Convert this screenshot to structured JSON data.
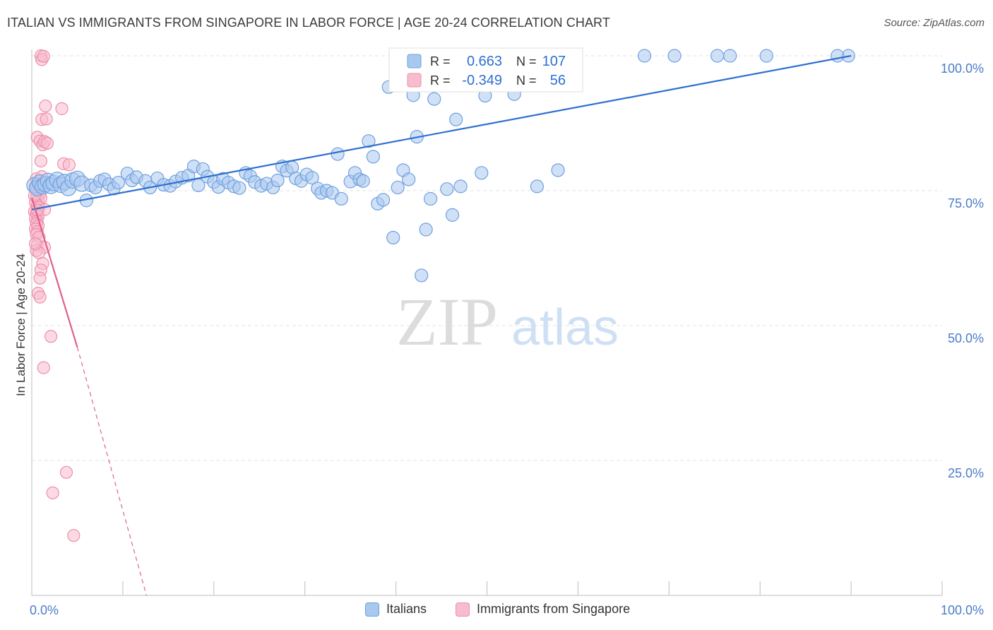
{
  "header": {
    "title": "ITALIAN VS IMMIGRANTS FROM SINGAPORE IN LABOR FORCE | AGE 20-24 CORRELATION CHART",
    "source": "Source: ZipAtlas.com"
  },
  "watermark": {
    "zip": "ZIP",
    "atlas": "atlas"
  },
  "legend_top": {
    "rows": [
      {
        "r_label": "R =",
        "r_value": "0.663",
        "n_label": "N =",
        "n_value": "107"
      },
      {
        "r_label": "R =",
        "r_value": "-0.349",
        "n_label": "N =",
        "n_value": "56"
      }
    ]
  },
  "legend_bottom": {
    "italians": "Italians",
    "singapore": "Immigrants from Singapore"
  },
  "chart_data": {
    "type": "scatter",
    "title": "ITALIAN VS IMMIGRANTS FROM SINGAPORE IN LABOR FORCE | AGE 20-24 CORRELATION CHART",
    "ylabel": "In Labor Force | Age 20-24",
    "xlim": [
      0,
      100
    ],
    "ylim": [
      0,
      100
    ],
    "x_tick_labels": [
      "0.0%",
      "100.0%"
    ],
    "y_tick_labels": [
      {
        "value": 100,
        "label": "100.0%"
      },
      {
        "value": 75,
        "label": "75.0%"
      },
      {
        "value": 50,
        "label": "50.0%"
      },
      {
        "value": 25,
        "label": "25.0%"
      }
    ],
    "grid": true,
    "legend_position": "top-center",
    "colors": {
      "italians_fill": "#a9c8f0",
      "italians_stroke": "#6fa0dd",
      "italians_line": "#2f6fd0",
      "singapore_fill": "#f7bccd",
      "singapore_stroke": "#ee8eac",
      "singapore_line": "#e0608a",
      "tick_label": "#4a7cc9"
    },
    "series": [
      {
        "name": "Italians",
        "R": 0.663,
        "N": 107,
        "trend": {
          "x0": 0,
          "y0": 71.5,
          "x1": 90,
          "y1": 100
        },
        "points": [
          [
            0.3,
            76
          ],
          [
            0.6,
            75.5
          ],
          [
            0.9,
            76.5
          ],
          [
            1.2,
            75.8
          ],
          [
            1.5,
            76.2
          ],
          [
            1.8,
            76.8
          ],
          [
            2.1,
            75.9
          ],
          [
            2.4,
            76.4
          ],
          [
            2.8,
            77
          ],
          [
            3.2,
            76.1
          ],
          [
            3.6,
            76.6
          ],
          [
            4.0,
            75.5
          ],
          [
            4.5,
            76.9
          ],
          [
            5.0,
            77.2
          ],
          [
            5.5,
            76.3
          ],
          [
            6.0,
            73.2
          ],
          [
            6.5,
            76
          ],
          [
            7.0,
            75.6
          ],
          [
            7.5,
            76.8
          ],
          [
            8.0,
            77.1
          ],
          [
            8.5,
            76.2
          ],
          [
            9.0,
            75.4
          ],
          [
            9.5,
            76.5
          ],
          [
            10.5,
            78.2
          ],
          [
            11.0,
            76.9
          ],
          [
            11.5,
            77.5
          ],
          [
            12.5,
            76.8
          ],
          [
            13.0,
            75.6
          ],
          [
            13.8,
            77.3
          ],
          [
            14.5,
            76.1
          ],
          [
            15.2,
            75.9
          ],
          [
            15.8,
            76.7
          ],
          [
            16.5,
            77.4
          ],
          [
            17.2,
            77.8
          ],
          [
            17.8,
            79.5
          ],
          [
            18.3,
            76
          ],
          [
            18.8,
            79
          ],
          [
            19.3,
            77.6
          ],
          [
            20.0,
            76.6
          ],
          [
            20.5,
            75.7
          ],
          [
            21.0,
            77.2
          ],
          [
            21.6,
            76.5
          ],
          [
            22.2,
            75.8
          ],
          [
            22.8,
            75.5
          ],
          [
            23.5,
            78.3
          ],
          [
            24.0,
            77.7
          ],
          [
            24.5,
            76.6
          ],
          [
            25.2,
            75.9
          ],
          [
            25.8,
            76.3
          ],
          [
            26.5,
            75.6
          ],
          [
            27.0,
            76.9
          ],
          [
            27.5,
            79.5
          ],
          [
            28.0,
            78.7
          ],
          [
            28.6,
            79.3
          ],
          [
            29.0,
            77.3
          ],
          [
            29.6,
            76.8
          ],
          [
            30.2,
            78
          ],
          [
            30.8,
            77.4
          ],
          [
            31.4,
            75.4
          ],
          [
            31.8,
            74.6
          ],
          [
            32.4,
            75
          ],
          [
            33.0,
            74.6
          ],
          [
            33.6,
            81.8
          ],
          [
            34.0,
            73.5
          ],
          [
            35.0,
            76.7
          ],
          [
            35.5,
            78.3
          ],
          [
            36.0,
            77.1
          ],
          [
            36.4,
            76.8
          ],
          [
            37.0,
            84.2
          ],
          [
            37.5,
            81.3
          ],
          [
            38.0,
            72.6
          ],
          [
            38.6,
            73.3
          ],
          [
            39.2,
            94.2
          ],
          [
            39.7,
            66.3
          ],
          [
            40.2,
            75.6
          ],
          [
            40.8,
            78.8
          ],
          [
            41.4,
            77.1
          ],
          [
            41.9,
            92.7
          ],
          [
            42.3,
            85
          ],
          [
            42.8,
            59.3
          ],
          [
            43.3,
            67.8
          ],
          [
            43.8,
            73.5
          ],
          [
            44.2,
            92
          ],
          [
            45.0,
            94.5
          ],
          [
            45.6,
            75.3
          ],
          [
            46.2,
            70.5
          ],
          [
            46.6,
            88.2
          ],
          [
            47.1,
            75.8
          ],
          [
            47.6,
            100
          ],
          [
            49.4,
            78.3
          ],
          [
            49.8,
            92.6
          ],
          [
            50.5,
            100
          ],
          [
            52.0,
            100
          ],
          [
            52.6,
            100
          ],
          [
            53.0,
            92.9
          ],
          [
            53.6,
            100
          ],
          [
            55.5,
            75.8
          ],
          [
            55.9,
            100
          ],
          [
            57.8,
            78.8
          ],
          [
            67.3,
            100
          ],
          [
            70.6,
            100
          ],
          [
            75.3,
            100
          ],
          [
            76.7,
            100
          ],
          [
            80.7,
            100
          ],
          [
            89.7,
            100
          ],
          [
            88.5,
            100
          ],
          [
            46.9,
            100
          ]
        ]
      },
      {
        "name": "Immigrants from Singapore",
        "R": -0.349,
        "N": 56,
        "trend": {
          "x0": 0,
          "y0": 73.7,
          "x1": 5,
          "y1": 46,
          "dash_to_x": 12.6,
          "dash_to_y": 0
        },
        "points": [
          [
            1.0,
            100
          ],
          [
            1.1,
            99.3
          ],
          [
            1.3,
            99.9
          ],
          [
            1.5,
            90.7
          ],
          [
            3.3,
            90.2
          ],
          [
            1.1,
            88.2
          ],
          [
            1.6,
            88.3
          ],
          [
            0.6,
            84.9
          ],
          [
            0.9,
            84.2
          ],
          [
            1.2,
            83.5
          ],
          [
            1.4,
            84.1
          ],
          [
            1.7,
            83.8
          ],
          [
            1.0,
            80.5
          ],
          [
            3.5,
            80
          ],
          [
            4.1,
            79.8
          ],
          [
            0.5,
            77.2
          ],
          [
            0.8,
            76.3
          ],
          [
            0.4,
            75.8
          ],
          [
            0.6,
            75.2
          ],
          [
            0.9,
            74.5
          ],
          [
            0.5,
            73.8
          ],
          [
            0.7,
            73.2
          ],
          [
            1.0,
            73.6
          ],
          [
            0.4,
            72.8
          ],
          [
            0.6,
            72.3
          ],
          [
            0.8,
            71.9
          ],
          [
            1.4,
            71.5
          ],
          [
            0.3,
            71.1
          ],
          [
            0.5,
            70.7
          ],
          [
            0.7,
            70.3
          ],
          [
            0.4,
            69.8
          ],
          [
            0.6,
            69.4
          ],
          [
            0.5,
            68.9
          ],
          [
            0.7,
            68.5
          ],
          [
            0.4,
            67.9
          ],
          [
            0.6,
            67.4
          ],
          [
            0.5,
            66.9
          ],
          [
            0.8,
            66.4
          ],
          [
            0.6,
            64.9
          ],
          [
            1.4,
            64.5
          ],
          [
            0.5,
            63.9
          ],
          [
            0.8,
            63.5
          ],
          [
            1.2,
            61.5
          ],
          [
            1.0,
            60.3
          ],
          [
            0.9,
            58.8
          ],
          [
            0.7,
            56
          ],
          [
            0.9,
            55.3
          ],
          [
            2.1,
            48
          ],
          [
            1.3,
            42.2
          ],
          [
            3.8,
            22.8
          ],
          [
            2.3,
            19
          ],
          [
            4.6,
            11.1
          ],
          [
            0.4,
            65.2
          ],
          [
            0.3,
            74.1
          ],
          [
            1.1,
            77.6
          ],
          [
            0.6,
            71.4
          ]
        ]
      }
    ]
  }
}
